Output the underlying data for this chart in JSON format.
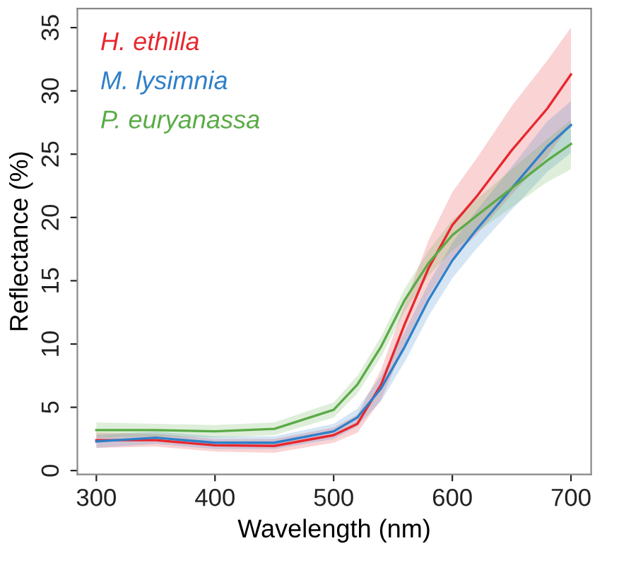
{
  "chart_data": {
    "type": "line",
    "xlabel": "Wavelength (nm)",
    "ylabel": "Reflectance (%)",
    "x": [
      300,
      350,
      400,
      450,
      500,
      520,
      540,
      560,
      580,
      600,
      620,
      650,
      680,
      700
    ],
    "series": [
      {
        "name": "H. ethilla",
        "color": "#e8272d",
        "values": [
          2.4,
          2.4,
          2.0,
          1.95,
          2.8,
          3.7,
          6.8,
          11.6,
          16.0,
          19.4,
          21.6,
          25.3,
          28.6,
          31.3
        ],
        "lower": [
          1.8,
          1.9,
          1.5,
          1.4,
          2.2,
          3.0,
          5.6,
          10.0,
          13.8,
          16.8,
          18.6,
          21.8,
          24.8,
          27.4
        ],
        "upper": [
          3.0,
          2.9,
          2.5,
          2.5,
          3.4,
          4.4,
          8.0,
          13.2,
          18.2,
          22.0,
          24.6,
          28.8,
          32.4,
          35.0
        ]
      },
      {
        "name": "M. lysimnia",
        "color": "#2f7fc8",
        "values": [
          2.3,
          2.6,
          2.2,
          2.2,
          3.1,
          4.2,
          6.5,
          9.8,
          13.5,
          16.6,
          19.0,
          22.3,
          25.6,
          27.3
        ],
        "lower": [
          1.8,
          2.1,
          1.7,
          1.7,
          2.5,
          3.5,
          5.5,
          8.6,
          12.2,
          15.2,
          17.5,
          20.6,
          23.6,
          25.1
        ],
        "upper": [
          2.8,
          3.1,
          2.7,
          2.7,
          3.7,
          4.9,
          7.5,
          11.0,
          14.8,
          18.0,
          20.5,
          24.0,
          27.6,
          29.2
        ]
      },
      {
        "name": "P. euryanassa",
        "color": "#5aab46",
        "values": [
          3.2,
          3.2,
          3.1,
          3.3,
          4.8,
          6.8,
          9.8,
          13.5,
          16.4,
          18.6,
          20.1,
          22.3,
          24.5,
          25.8
        ],
        "lower": [
          2.6,
          2.7,
          2.6,
          2.8,
          4.2,
          6.1,
          9.0,
          12.6,
          15.4,
          17.4,
          18.8,
          20.8,
          22.8,
          23.8
        ],
        "upper": [
          3.8,
          3.7,
          3.6,
          3.8,
          5.4,
          7.5,
          10.6,
          14.4,
          17.4,
          19.8,
          21.4,
          23.8,
          26.2,
          27.7
        ]
      }
    ],
    "xlim": [
      284,
      717
    ],
    "ylim": [
      -0.3,
      36.5
    ],
    "xticks": [
      300,
      400,
      500,
      600,
      700
    ],
    "yticks": [
      0,
      5,
      10,
      15,
      20,
      25,
      30,
      35
    ],
    "grid": false,
    "legend": "top left",
    "marker": "none",
    "line_style": "solid"
  }
}
